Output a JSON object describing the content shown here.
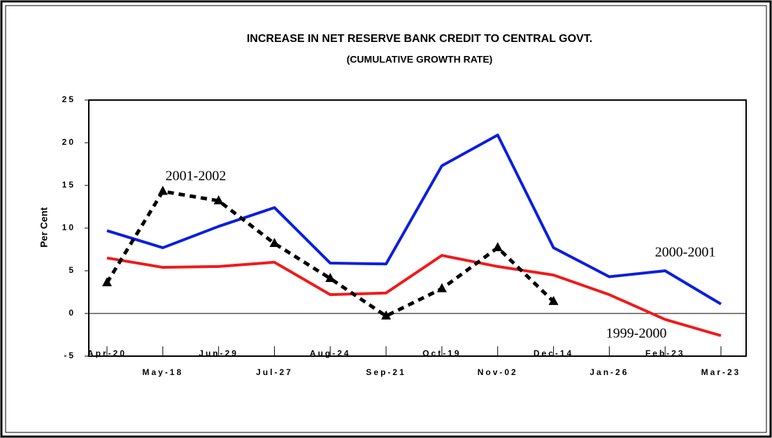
{
  "chart_data": {
    "type": "line",
    "title": "INCREASE IN NET RESERVE BANK CREDIT TO CENTRAL GOVT.",
    "subtitle": "(CUMULATIVE GROWTH RATE)",
    "y_label": "Per Cent",
    "categories": [
      "Apr-20",
      "May-18",
      "Jun-29",
      "Jul-27",
      "Aug-24",
      "Sep-21",
      "Oct-19",
      "Nov-02",
      "Dec-14",
      "Jan-26",
      "Feb-23",
      "Mar-23"
    ],
    "series": [
      {
        "name": "2000-2001",
        "color": "#0a1ee0",
        "style": "solid",
        "values": [
          9.7,
          7.7,
          10.2,
          12.4,
          5.9,
          5.8,
          17.3,
          20.9,
          7.7,
          4.3,
          5.0,
          1.1
        ]
      },
      {
        "name": "1999-2000",
        "color": "#f01a1a",
        "style": "solid",
        "values": [
          6.5,
          5.4,
          5.5,
          6.0,
          2.2,
          2.4,
          6.8,
          5.5,
          4.5,
          2.2,
          -0.7,
          -2.6
        ]
      },
      {
        "name": "2001-2002",
        "color": "#000000",
        "style": "dashed",
        "marker": "triangle",
        "values": [
          3.6,
          14.3,
          13.2,
          8.2,
          4.1,
          -0.3,
          2.9,
          7.7,
          1.4,
          null,
          null,
          null
        ]
      }
    ],
    "ylim": [
      -5,
      25
    ],
    "yticks": [
      -5,
      0,
      5,
      10,
      15,
      20,
      25
    ],
    "zero_line": true
  }
}
